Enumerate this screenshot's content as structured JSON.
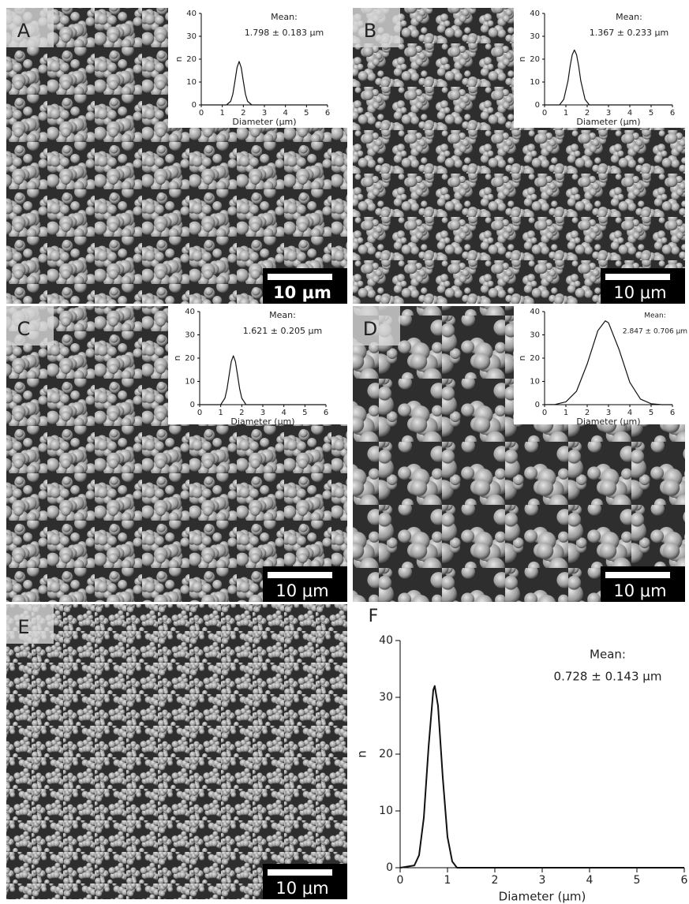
{
  "images": [
    {
      "label": "A",
      "scale_bar": "10 μm"
    },
    {
      "label": "B",
      "scale_bar": "10 μm"
    },
    {
      "label": "C",
      "scale_bar": "10 μm"
    },
    {
      "label": "D",
      "scale_bar": "10 μm"
    },
    {
      "label": "E",
      "scale_bar": "10 μm"
    }
  ],
  "chart_data": [
    {
      "type": "line",
      "x_label": "Diameter (μm)",
      "y_label": "n",
      "annotations": [
        "Mean:",
        "1.798 ± 0.183 μm"
      ],
      "x": [
        0,
        1.2,
        1.4,
        1.5,
        1.6,
        1.7,
        1.8,
        1.9,
        2.0,
        2.1,
        2.2,
        2.4,
        6
      ],
      "values": [
        0,
        0,
        1.6,
        4.7,
        10.3,
        16.3,
        19,
        16.3,
        10.3,
        4.7,
        1.6,
        0,
        0
      ],
      "color": "#111",
      "xlim": [
        0,
        6
      ],
      "ylim": [
        0,
        40
      ],
      "xticks": [
        0,
        1,
        2,
        3,
        4,
        5,
        6
      ],
      "yticks": [
        0,
        10,
        20,
        30,
        40
      ]
    },
    {
      "type": "line",
      "x_label": "Diameter (μm)",
      "y_label": "n",
      "annotations": [
        "Mean:",
        "1.367 ± 0.233 μm"
      ],
      "x": [
        0,
        0.7,
        0.9,
        1.1,
        1.2,
        1.3,
        1.4,
        1.5,
        1.6,
        1.7,
        1.9,
        2.1,
        6
      ],
      "values": [
        0,
        0,
        2.4,
        10.5,
        17,
        22,
        24,
        22,
        17,
        10.5,
        2.4,
        0,
        0
      ],
      "color": "#111",
      "xlim": [
        0,
        6
      ],
      "ylim": [
        0,
        40
      ],
      "xticks": [
        0,
        1,
        2,
        3,
        4,
        5,
        6
      ],
      "yticks": [
        0,
        10,
        20,
        30,
        40
      ]
    },
    {
      "type": "line",
      "x_label": "Diameter (μm)",
      "y_label": "n",
      "annotations": [
        "Mean:",
        "1.621 ± 0.205 μm"
      ],
      "x": [
        0,
        1.0,
        1.2,
        1.3,
        1.4,
        1.5,
        1.6,
        1.7,
        1.8,
        1.9,
        2.0,
        2.2,
        6
      ],
      "values": [
        0,
        0,
        2.8,
        6.8,
        12.7,
        18.5,
        21,
        18.5,
        12.7,
        6.8,
        2.8,
        0,
        0
      ],
      "color": "#111",
      "xlim": [
        0,
        6
      ],
      "ylim": [
        0,
        40
      ],
      "xticks": [
        0,
        1,
        2,
        3,
        4,
        5,
        6
      ],
      "yticks": [
        0,
        10,
        20,
        30,
        40
      ]
    },
    {
      "type": "line",
      "x_label": "Diameter (μm)",
      "y_label": "n",
      "annotations": [
        "Mean:",
        "2.847 ± 0.706 μm"
      ],
      "x": [
        0,
        0.5,
        1.0,
        1.5,
        2.0,
        2.5,
        2.85,
        3.0,
        3.5,
        4.0,
        4.5,
        5.0,
        5.5,
        6
      ],
      "values": [
        0,
        0.1,
        1.2,
        5.8,
        17.5,
        31.8,
        36,
        35.2,
        23.6,
        9.6,
        2.4,
        0.4,
        0,
        0
      ],
      "color": "#111",
      "xlim": [
        0,
        6
      ],
      "ylim": [
        0,
        40
      ],
      "xticks": [
        0,
        1,
        2,
        3,
        4,
        5,
        6
      ],
      "yticks": [
        0,
        10,
        20,
        30,
        40
      ]
    },
    {
      "type": "line",
      "label": "F",
      "x_label": "Diameter (μm)",
      "y_label": "n",
      "annotations": [
        "Mean:",
        "0.728 ± 0.143 μm"
      ],
      "x": [
        0,
        0.3,
        0.4,
        0.5,
        0.6,
        0.7,
        0.73,
        0.8,
        0.9,
        1.0,
        1.1,
        1.2,
        6
      ],
      "values": [
        0,
        0.4,
        2.2,
        8.8,
        21.2,
        31.3,
        32,
        28.5,
        15.9,
        5.4,
        1.1,
        0,
        0
      ],
      "color": "#111",
      "xlim": [
        0,
        6
      ],
      "ylim": [
        0,
        40
      ],
      "xticks": [
        0,
        1,
        2,
        3,
        4,
        5,
        6
      ],
      "yticks": [
        0,
        10,
        20,
        30,
        40
      ]
    }
  ]
}
